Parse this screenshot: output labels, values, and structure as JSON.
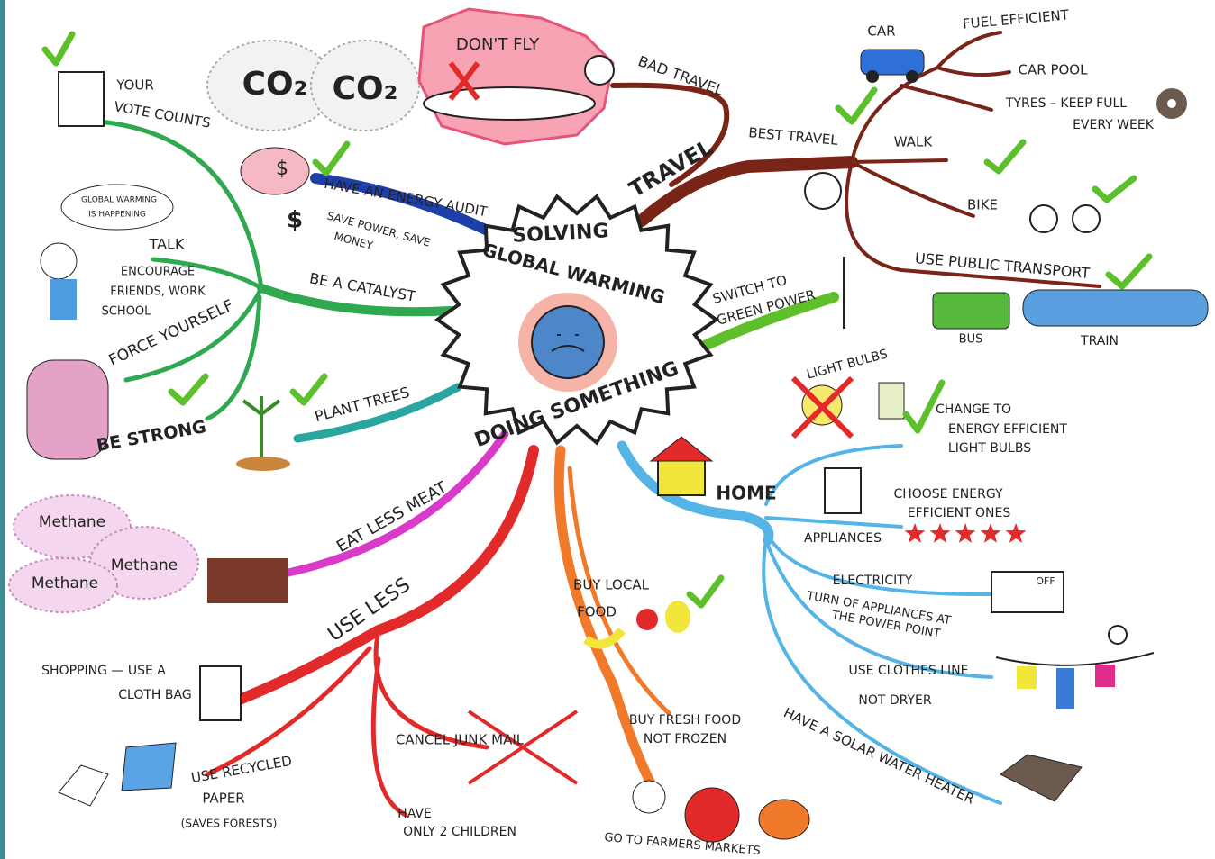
{
  "center": {
    "line1": "SOLVING",
    "line2": "GLOBAL WARMING",
    "line3": "DOING SOMETHING"
  },
  "travel": {
    "label": "TRAVEL",
    "bad_travel": "BAD TRAVEL",
    "dont_fly": "DON'T FLY",
    "co2": [
      "CO₂",
      "CO₂"
    ],
    "best_travel": "BEST TRAVEL",
    "car": "CAR",
    "fuel_efficient": "FUEL EFFICIENT",
    "car_pool": "CAR POOL",
    "tyres": [
      "TYRES – KEEP FULL",
      "EVERY WEEK"
    ],
    "walk": "WALK",
    "bike": "BIKE",
    "public_transport": "USE PUBLIC TRANSPORT",
    "bus": "BUS",
    "train": "TRAIN"
  },
  "green_power": [
    "SWITCH TO",
    "GREEN POWER"
  ],
  "home": {
    "label": "HOME",
    "light_bulbs": "LIGHT BULBS",
    "change_bulbs": [
      "CHANGE TO",
      "ENERGY EFFICIENT",
      "LIGHT BULBS"
    ],
    "appliances": "APPLIANCES",
    "choose": [
      "CHOOSE ENERGY",
      "EFFICIENT ONES"
    ],
    "electricity": "ELECTRICITY",
    "turn_off": [
      "TURN OF APPLIANCES AT",
      "THE POWER POINT"
    ],
    "off": "OFF",
    "clothes_line": [
      "USE CLOTHES LINE",
      "NOT DRYER"
    ],
    "solar": "HAVE A SOLAR WATER HEATER"
  },
  "food": {
    "local": [
      "BUY LOCAL",
      "FOOD"
    ],
    "fresh": [
      "BUY FRESH FOOD",
      "NOT FROZEN"
    ],
    "markets": "GO TO FARMERS MARKETS"
  },
  "use_less": {
    "label": "USE LESS",
    "shopping": [
      "SHOPPING — USE A",
      "CLOTH BAG"
    ],
    "paper": [
      "USE RECYCLED",
      "PAPER",
      "(SAVES FORESTS)"
    ],
    "junk_mail": "CANCEL JUNK MAIL",
    "children": [
      "HAVE",
      "ONLY 2 CHILDREN"
    ]
  },
  "meat": {
    "label": "EAT LESS MEAT",
    "methane": [
      "Methane",
      "Methane",
      "Methane"
    ]
  },
  "trees": "PLANT TREES",
  "catalyst": {
    "label": "BE A CATALYST",
    "vote": [
      "YOUR",
      "VOTE COUNTS"
    ],
    "talk": "TALK",
    "bubble": [
      "GLOBAL WARMING",
      "IS HAPPENING"
    ],
    "encourage": [
      "ENCOURAGE",
      "FRIENDS, WORK",
      "SCHOOL"
    ],
    "force": "FORCE YOURSELF",
    "strong": "BE STRONG"
  },
  "audit": {
    "label": "HAVE AN ENERGY AUDIT",
    "save": [
      "SAVE POWER, SAVE",
      "MONEY"
    ],
    "dollar": [
      "$",
      "$"
    ]
  }
}
